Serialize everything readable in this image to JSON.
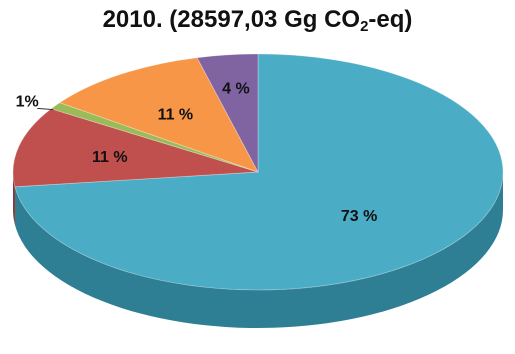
{
  "chart_data": {
    "type": "pie",
    "title_line1": "",
    "title_line2": {
      "prefix": "2010. (28597,03 Gg CO",
      "subscript": "2",
      "suffix": "-eq)"
    },
    "slices": [
      {
        "value": 73,
        "label": "73 %",
        "color": "#4bacc6",
        "side_color": "#2f7f94"
      },
      {
        "value": 11,
        "label": "11 %",
        "color": "#c0504d",
        "side_color": "#8c3432"
      },
      {
        "value": 1,
        "label": "1%",
        "color": "#9bbb59",
        "side_color": "#6f8a3b"
      },
      {
        "value": 11,
        "label": "11 %",
        "color": "#f79646",
        "side_color": "#b8692a"
      },
      {
        "value": 4,
        "label": "4 %",
        "color": "#8064a2",
        "side_color": "#5b4577"
      }
    ]
  }
}
